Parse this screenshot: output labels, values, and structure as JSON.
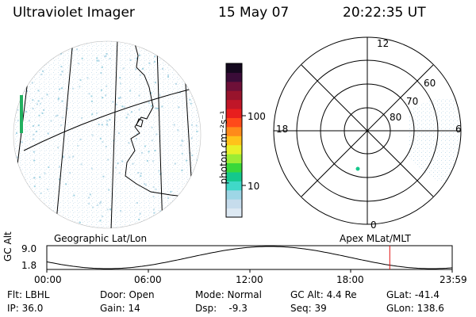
{
  "header": {
    "instrument": "Ultraviolet Imager",
    "date": "15 May 07",
    "time": "20:22:35 UT"
  },
  "colorbar": {
    "unit_label": "photon cm⁻²s⁻¹",
    "ticks": [
      "100",
      "10"
    ],
    "colors": [
      "#dde9f3",
      "#c6dcec",
      "#9ed6e6",
      "#40d8c8",
      "#14c88c",
      "#38d83a",
      "#9cec34",
      "#e8f028",
      "#ffc21a",
      "#ff8a1a",
      "#ff4a1a",
      "#e81e1e",
      "#c01628",
      "#98142c",
      "#6e1038",
      "#3a0c38",
      "#14081e"
    ]
  },
  "polar_plot": {
    "mlt_labels": {
      "top": "12",
      "left": "18",
      "right": "6",
      "bottom": "0"
    },
    "lat_labels": [
      "60",
      "70",
      "80"
    ]
  },
  "map_labels": {
    "left": "Geographic Lat/Lon",
    "right": "Apex MLat/MLT"
  },
  "altitude_plot": {
    "ylabel": "GC Alt",
    "ymax": "9.0",
    "ymin": "1.8",
    "x_ticks": [
      "00:00",
      "06:00",
      "12:00",
      "18:00",
      "23:59"
    ],
    "current_time_fraction": 0.846
  },
  "info_panel": {
    "filter": "Flt: LBHL",
    "ip": "IP: 36.0",
    "door": "Door: Open",
    "gain": "Gain: 14",
    "mode": "Mode: Normal",
    "dsp": "Dsp:    -9.3",
    "gc_alt": "GC Alt: 4.4 Re",
    "seq": "Seq: 39",
    "glat": "GLat: -41.4",
    "glon": "GLon: 138.6"
  }
}
